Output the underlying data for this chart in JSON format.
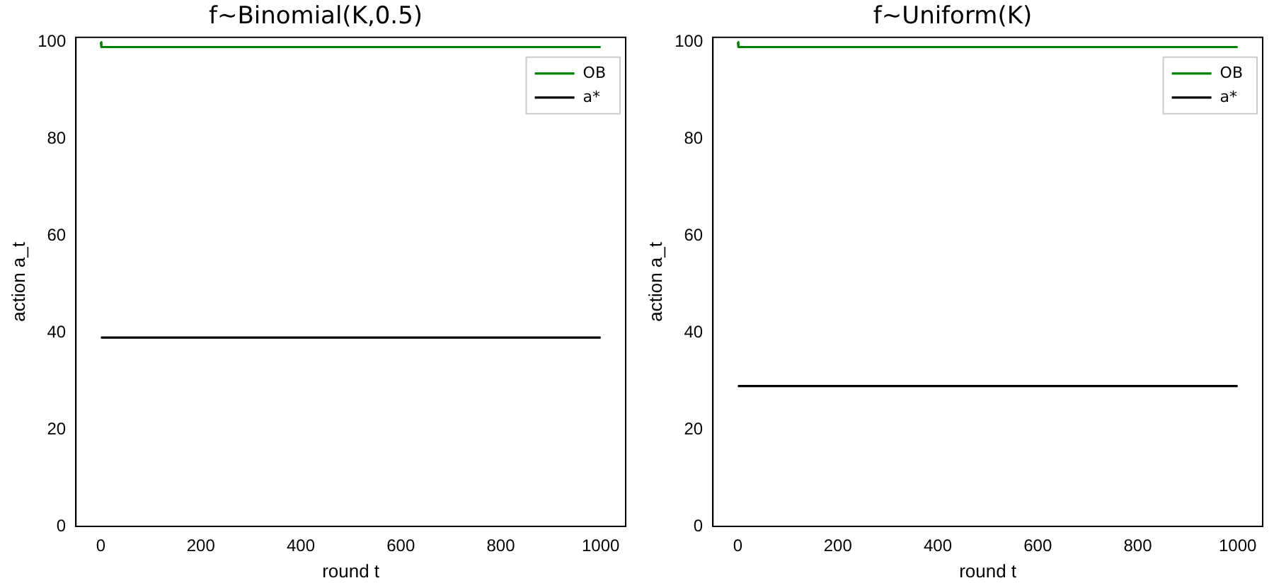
{
  "chart_data": [
    {
      "type": "line",
      "title": "f~Binomial(K,0.5)",
      "xlabel": "round t",
      "ylabel": "action a_t",
      "xlim": [
        -50,
        1050
      ],
      "xticks": [
        0,
        200,
        400,
        600,
        800,
        1000
      ],
      "ylim": [
        0,
        101
      ],
      "yticks": [
        0,
        20,
        40,
        60,
        80,
        100
      ],
      "grid": false,
      "legend": "top right",
      "marker": "none",
      "series": [
        {
          "name": "OB",
          "color": "#008000",
          "x": [
            0,
            1,
            1000
          ],
          "values": [
            100,
            99,
            99
          ]
        },
        {
          "name": "a*",
          "color": "#000000",
          "x": [
            0,
            1000
          ],
          "values": [
            39,
            39
          ]
        }
      ]
    },
    {
      "type": "line",
      "title": "f~Uniform(K)",
      "xlabel": "round t",
      "ylabel": "action a_t",
      "xlim": [
        -50,
        1050
      ],
      "xticks": [
        0,
        200,
        400,
        600,
        800,
        1000
      ],
      "ylim": [
        0,
        101
      ],
      "yticks": [
        0,
        20,
        40,
        60,
        80,
        100
      ],
      "grid": false,
      "legend": "top right",
      "marker": "none",
      "series": [
        {
          "name": "OB",
          "color": "#008000",
          "x": [
            0,
            1,
            1000
          ],
          "values": [
            100,
            99,
            99
          ]
        },
        {
          "name": "a*",
          "color": "#000000",
          "x": [
            0,
            1000
          ],
          "values": [
            29,
            29
          ]
        }
      ]
    }
  ]
}
